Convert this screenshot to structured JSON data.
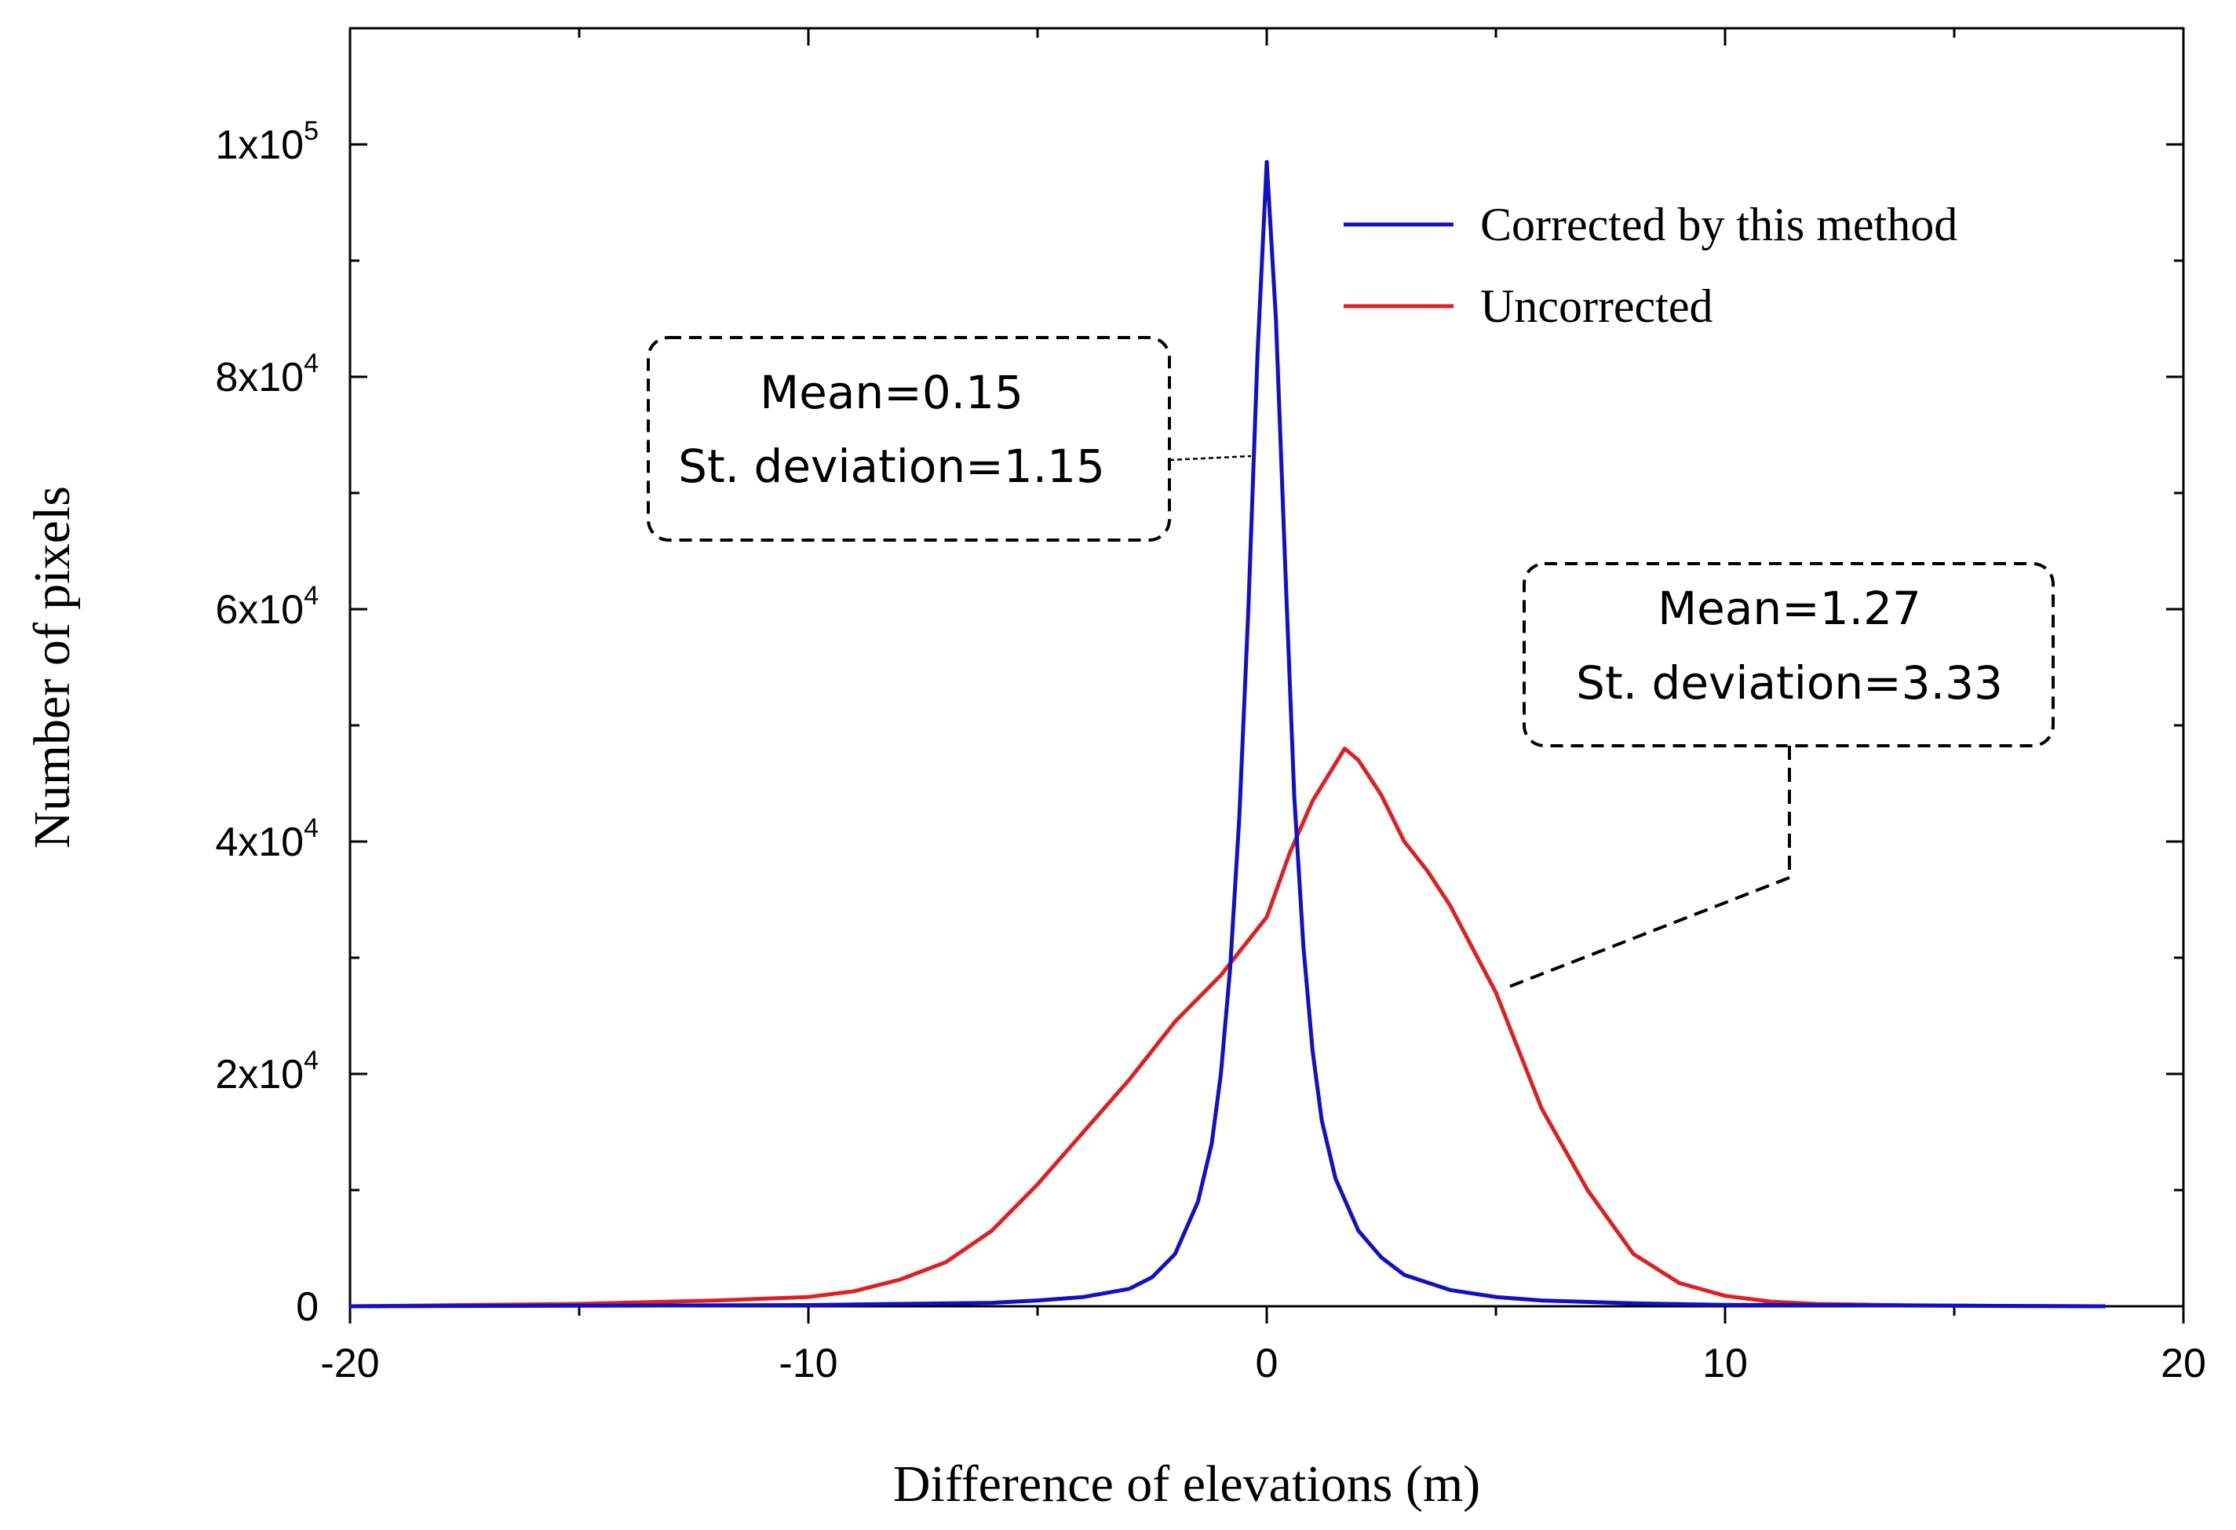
{
  "chart_data": {
    "type": "line",
    "title": "",
    "xlabel": "Difference of elevations (m)",
    "ylabel": "Number of pixels",
    "xlim": [
      -20,
      20
    ],
    "ylim": [
      0,
      110000
    ],
    "xticks": [
      {
        "value": -20,
        "label": "-20"
      },
      {
        "value": -10,
        "label": "-10"
      },
      {
        "value": 0,
        "label": "0"
      },
      {
        "value": 10,
        "label": "10"
      },
      {
        "value": 20,
        "label": "20"
      }
    ],
    "yticks": [
      {
        "value": 0,
        "base": "0",
        "exp": ""
      },
      {
        "value": 20000,
        "base": "2x10",
        "exp": "4"
      },
      {
        "value": 40000,
        "base": "4x10",
        "exp": "4"
      },
      {
        "value": 60000,
        "base": "6x10",
        "exp": "4"
      },
      {
        "value": 80000,
        "base": "8x10",
        "exp": "4"
      },
      {
        "value": 100000,
        "base": "1x10",
        "exp": "5"
      }
    ],
    "legend_position": "top-right",
    "series": [
      {
        "name": "Corrected by this method",
        "color": "#1010c8",
        "x": [
          -20,
          -15,
          -10,
          -8,
          -6,
          -5,
          -4,
          -3,
          -2.5,
          -2,
          -1.5,
          -1.2,
          -1,
          -0.8,
          -0.6,
          -0.4,
          -0.2,
          0,
          0.2,
          0.4,
          0.6,
          0.8,
          1,
          1.2,
          1.5,
          2,
          2.5,
          3,
          4,
          5,
          6,
          8,
          10,
          15,
          18.3
        ],
        "y": [
          0,
          50,
          100,
          200,
          300,
          500,
          800,
          1500,
          2500,
          4500,
          9000,
          14000,
          20000,
          29000,
          42000,
          60000,
          82000,
          98500,
          85000,
          64000,
          44000,
          31000,
          22000,
          16000,
          11000,
          6500,
          4200,
          2700,
          1400,
          800,
          500,
          250,
          120,
          50,
          0
        ]
      },
      {
        "name": "Uncorrected",
        "color": "#e02020",
        "x": [
          -20,
          -15,
          -12,
          -10,
          -9,
          -8,
          -7,
          -6,
          -5,
          -4,
          -3,
          -2,
          -1,
          0,
          0.5,
          1,
          1.7,
          2,
          2.5,
          3,
          3.5,
          4,
          5,
          6,
          7,
          8,
          9,
          10,
          11,
          12,
          14,
          16,
          18.3
        ],
        "y": [
          0,
          200,
          500,
          800,
          1300,
          2300,
          3800,
          6500,
          10500,
          15000,
          19500,
          24500,
          28500,
          33500,
          39000,
          43500,
          48000,
          47000,
          44000,
          40000,
          37500,
          34500,
          27000,
          17000,
          10000,
          4500,
          2000,
          900,
          400,
          200,
          80,
          30,
          0
        ]
      }
    ],
    "annotations": [
      {
        "line1": "Mean=0.15",
        "line2": "St. deviation=1.15",
        "target": "Corrected by this method"
      },
      {
        "line1": "Mean=1.27",
        "line2": "St. deviation=3.33",
        "target": "Uncorrected"
      }
    ]
  }
}
